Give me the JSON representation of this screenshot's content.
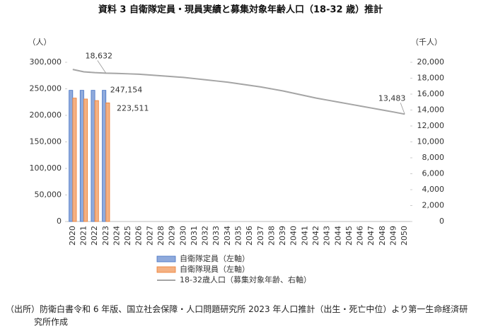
{
  "chart_data": {
    "type": "bar",
    "title": "資料 3 自衛隊定員・現員実績と募集対象年齢人口（18-32 歳）推計",
    "y_axis_label": "（人）",
    "y2_axis_label": "（千人）",
    "categories": [
      "2020",
      "2021",
      "2022",
      "2023",
      "2024",
      "2025",
      "2026",
      "2027",
      "2028",
      "2029",
      "2030",
      "2031",
      "2032",
      "2033",
      "2034",
      "2035",
      "2036",
      "2037",
      "2038",
      "2039",
      "2040",
      "2041",
      "2042",
      "2043",
      "2044",
      "2045",
      "2046",
      "2047",
      "2048",
      "2049",
      "2050"
    ],
    "series": [
      {
        "name": "自衛隊定員（左軸）",
        "type": "bar",
        "color": "#8faadc",
        "stroke": "#4472c4",
        "values": [
          247154,
          247154,
          247154,
          247154,
          null,
          null,
          null,
          null,
          null,
          null,
          null,
          null,
          null,
          null,
          null,
          null,
          null,
          null,
          null,
          null,
          null,
          null,
          null,
          null,
          null,
          null,
          null,
          null,
          null,
          null,
          null
        ],
        "value_labels": [
          null,
          null,
          null,
          "247,154",
          null,
          null,
          null,
          null,
          null,
          null,
          null,
          null,
          null,
          null,
          null,
          null,
          null,
          null,
          null,
          null,
          null,
          null,
          null,
          null,
          null,
          null,
          null,
          null,
          null,
          null,
          null
        ]
      },
      {
        "name": "自衛隊現員（左軸）",
        "type": "bar",
        "color": "#f4b183",
        "stroke": "#ed7d31",
        "values": [
          232509,
          230754,
          227843,
          223511,
          null,
          null,
          null,
          null,
          null,
          null,
          null,
          null,
          null,
          null,
          null,
          null,
          null,
          null,
          null,
          null,
          null,
          null,
          null,
          null,
          null,
          null,
          null,
          null,
          null,
          null,
          null
        ],
        "value_labels": [
          null,
          null,
          null,
          "223,511",
          null,
          null,
          null,
          null,
          null,
          null,
          null,
          null,
          null,
          null,
          null,
          null,
          null,
          null,
          null,
          null,
          null,
          null,
          null,
          null,
          null,
          null,
          null,
          null,
          null,
          null,
          null
        ]
      },
      {
        "name": "18-32歳人口（募集対象年齢、右軸）",
        "type": "line",
        "axis": "y2",
        "color": "#a5a5a5",
        "values": [
          19100,
          18800,
          18700,
          18632,
          18600,
          18550,
          18500,
          18400,
          18300,
          18200,
          18100,
          17950,
          17800,
          17650,
          17500,
          17300,
          17100,
          16900,
          16650,
          16400,
          16100,
          15800,
          15500,
          15250,
          15000,
          14750,
          14500,
          14250,
          14000,
          13750,
          13483
        ],
        "value_labels": [
          null,
          null,
          null,
          "18,632",
          null,
          null,
          null,
          null,
          null,
          null,
          null,
          null,
          null,
          null,
          null,
          null,
          null,
          null,
          null,
          null,
          null,
          null,
          null,
          null,
          null,
          null,
          null,
          null,
          null,
          null,
          "13,483"
        ]
      }
    ],
    "ylim": [
      0,
      300000
    ],
    "yticks": [
      0,
      {
        "value": 50000,
        "label": "50,000"
      },
      {
        "value": 100000,
        "label": "100,000"
      },
      {
        "value": 150000,
        "label": "150,000"
      },
      {
        "value": 200000,
        "label": "200,000"
      },
      {
        "value": 250000,
        "label": "250,000"
      },
      {
        "value": 300000,
        "label": "300,000"
      }
    ],
    "y2lim": [
      0,
      20000
    ],
    "y2ticks": [
      0,
      {
        "value": 2000,
        "label": "2,000"
      },
      {
        "value": 4000,
        "label": "4,000"
      },
      {
        "value": 6000,
        "label": "6,000"
      },
      {
        "value": 8000,
        "label": "8,000"
      },
      {
        "value": 10000,
        "label": "10,000"
      },
      {
        "value": 12000,
        "label": "12,000"
      },
      {
        "value": 14000,
        "label": "14,000"
      },
      {
        "value": 16000,
        "label": "16,000"
      },
      {
        "value": 18000,
        "label": "18,000"
      },
      {
        "value": 20000,
        "label": "20,000"
      }
    ],
    "note": "（出所）防衛白書令和 6 年版、国立社会保障・人口問題研究所 2023 年人口推計（出生・死亡中位）より第一生命経済研究所作成"
  }
}
